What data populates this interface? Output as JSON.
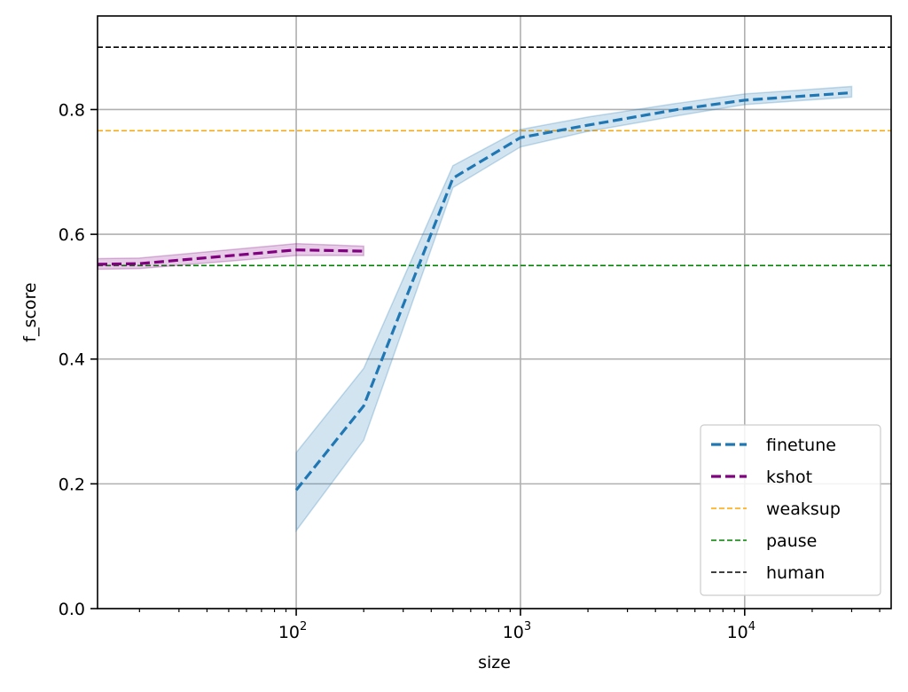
{
  "chart_data": {
    "type": "line",
    "xlabel": "size",
    "ylabel": "f_score",
    "xscale": "log",
    "xlim": [
      13,
      45000
    ],
    "ylim": [
      0.0,
      0.95
    ],
    "grid": true,
    "legend_position": "bottom-right",
    "x_ticks": [
      {
        "value": 100,
        "base": "10",
        "exp": "2"
      },
      {
        "value": 1000,
        "base": "10",
        "exp": "3"
      },
      {
        "value": 10000,
        "base": "10",
        "exp": "4"
      }
    ],
    "y_ticks": [
      {
        "value": 0.0,
        "label": "0.0"
      },
      {
        "value": 0.2,
        "label": "0.2"
      },
      {
        "value": 0.4,
        "label": "0.4"
      },
      {
        "value": 0.6,
        "label": "0.6"
      },
      {
        "value": 0.8,
        "label": "0.8"
      }
    ],
    "series": [
      {
        "name": "finetune",
        "color": "#1f77b4",
        "style": "dashed-thick",
        "x": [
          100,
          200,
          500,
          1000,
          2000,
          5000,
          10000,
          30000
        ],
        "y": [
          0.19,
          0.325,
          0.69,
          0.755,
          0.775,
          0.8,
          0.815,
          0.827
        ],
        "lower": [
          0.125,
          0.27,
          0.675,
          0.74,
          0.765,
          0.79,
          0.808,
          0.82
        ],
        "upper": [
          0.25,
          0.385,
          0.71,
          0.768,
          0.788,
          0.81,
          0.825,
          0.837
        ]
      },
      {
        "name": "kshot",
        "color": "#800080",
        "style": "dashed-thick",
        "x": [
          13,
          20,
          100,
          200
        ],
        "y": [
          0.552,
          0.553,
          0.575,
          0.573
        ],
        "lower": [
          0.544,
          0.545,
          0.566,
          0.566
        ],
        "upper": [
          0.561,
          0.562,
          0.585,
          0.581
        ]
      }
    ],
    "hlines": [
      {
        "name": "weaksup",
        "color": "#ffa500",
        "y": 0.766
      },
      {
        "name": "pause",
        "color": "#008000",
        "y": 0.55
      },
      {
        "name": "human",
        "color": "#000000",
        "y": 0.9
      }
    ]
  }
}
